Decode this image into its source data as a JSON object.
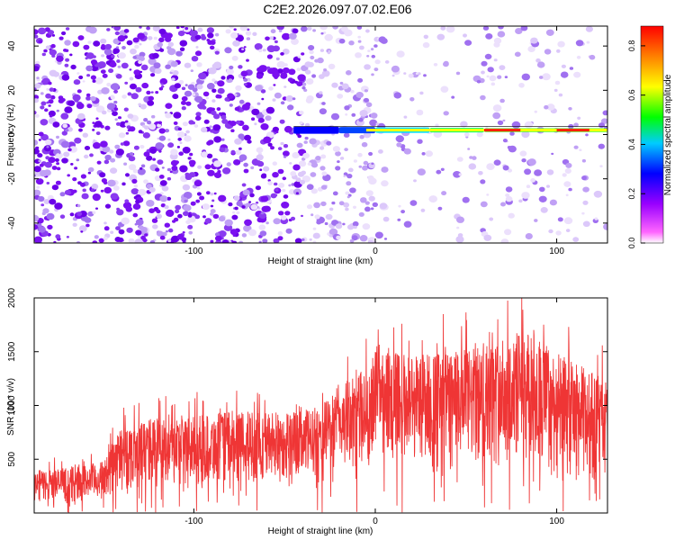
{
  "title": "C2E2.2026.097.07.02.E06",
  "chart_data": [
    {
      "type": "heatmap",
      "xlabel": "Height of straight line (km)",
      "ylabel": "Frequency (Hz)",
      "xlim": [
        -188,
        128
      ],
      "ylim": [
        -49,
        49
      ],
      "x_ticks": [
        -100,
        0,
        100
      ],
      "y_ticks": [
        -40,
        -20,
        0,
        20,
        40
      ],
      "colorbar": {
        "label": "Normalized spectral amplitude",
        "range": [
          0.0,
          0.88
        ],
        "ticks": [
          0.0,
          0.2,
          0.4,
          0.6,
          0.8
        ],
        "colors": [
          "#ffffff",
          "#ff00ff",
          "#0000ff",
          "#00ffff",
          "#00ff00",
          "#ffff00",
          "#ff0000"
        ]
      },
      "features": [
        {
          "name": "signal-band",
          "x_start": -45,
          "x_end": 128,
          "y_center": 2,
          "amplitude_peak": 0.85
        }
      ]
    },
    {
      "type": "line",
      "xlabel": "Height of straight line (km)",
      "ylabel": "SNR (10 * v/v)",
      "xlim": [
        -188,
        128
      ],
      "ylim": [
        0,
        2000
      ],
      "x_ticks": [
        -100,
        0,
        100
      ],
      "y_ticks": [
        500,
        1000,
        1500,
        2000
      ],
      "color": "#ef3535",
      "envelope": {
        "x": [
          -188,
          -170,
          -150,
          -140,
          -120,
          -100,
          -80,
          -60,
          -40,
          -30,
          -20,
          -10,
          -2,
          0,
          10,
          20,
          40,
          60,
          80,
          90,
          100,
          110,
          128
        ],
        "low": [
          100,
          100,
          120,
          200,
          250,
          250,
          280,
          280,
          320,
          350,
          400,
          420,
          450,
          550,
          500,
          480,
          450,
          420,
          450,
          420,
          350,
          300,
          300
        ],
        "high": [
          400,
          420,
          480,
          800,
          900,
          900,
          950,
          950,
          950,
          1000,
          1200,
          1300,
          1350,
          1700,
          1500,
          1500,
          1500,
          1550,
          1700,
          1650,
          1500,
          1400,
          1250
        ]
      }
    }
  ]
}
